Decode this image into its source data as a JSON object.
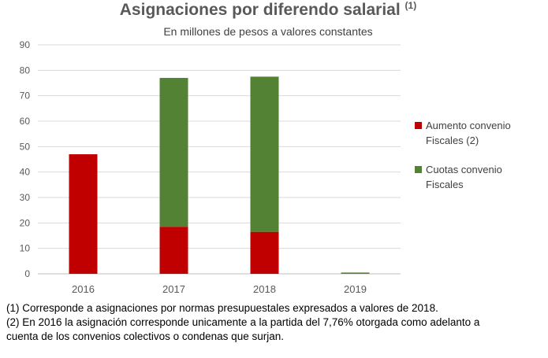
{
  "title": {
    "text": "Asignaciones por diferendo salarial",
    "note_ref": "(1)"
  },
  "subtitle": "En millones de pesos a valores constantes",
  "colors": {
    "aumento": "#c00000",
    "cuotas": "#548235",
    "grid": "#d9d9d9",
    "axis_text": "#595959"
  },
  "chart_data": {
    "type": "bar",
    "stacked": true,
    "categories": [
      "2016",
      "2017",
      "2018",
      "2019"
    ],
    "series": [
      {
        "name": "Aumento convenio Fiscales (2)",
        "color": "#c00000",
        "values": [
          47,
          18.5,
          16.5,
          0
        ]
      },
      {
        "name": "Cuotas convenio Fiscales",
        "color": "#548235",
        "values": [
          0,
          58.5,
          61,
          0.5
        ]
      }
    ],
    "ylim": [
      0,
      90
    ],
    "yticks": [
      0,
      10,
      20,
      30,
      40,
      50,
      60,
      70,
      80,
      90
    ],
    "grid": true,
    "legend_position": "right"
  },
  "legend": [
    {
      "line1": "Aumento convenio",
      "line2": "Fiscales (2)"
    },
    {
      "line1": "Cuotas convenio",
      "line2": "Fiscales"
    }
  ],
  "notes": [
    "(1) Corresponde a asignaciones por normas presupuestales expresados a valores de 2018.",
    "(2) En 2016 la asignación corresponde unicamente a la partida del 7,76% otorgada como adelanto a",
    "cuenta de los convenios colectivos o condenas que surjan."
  ]
}
